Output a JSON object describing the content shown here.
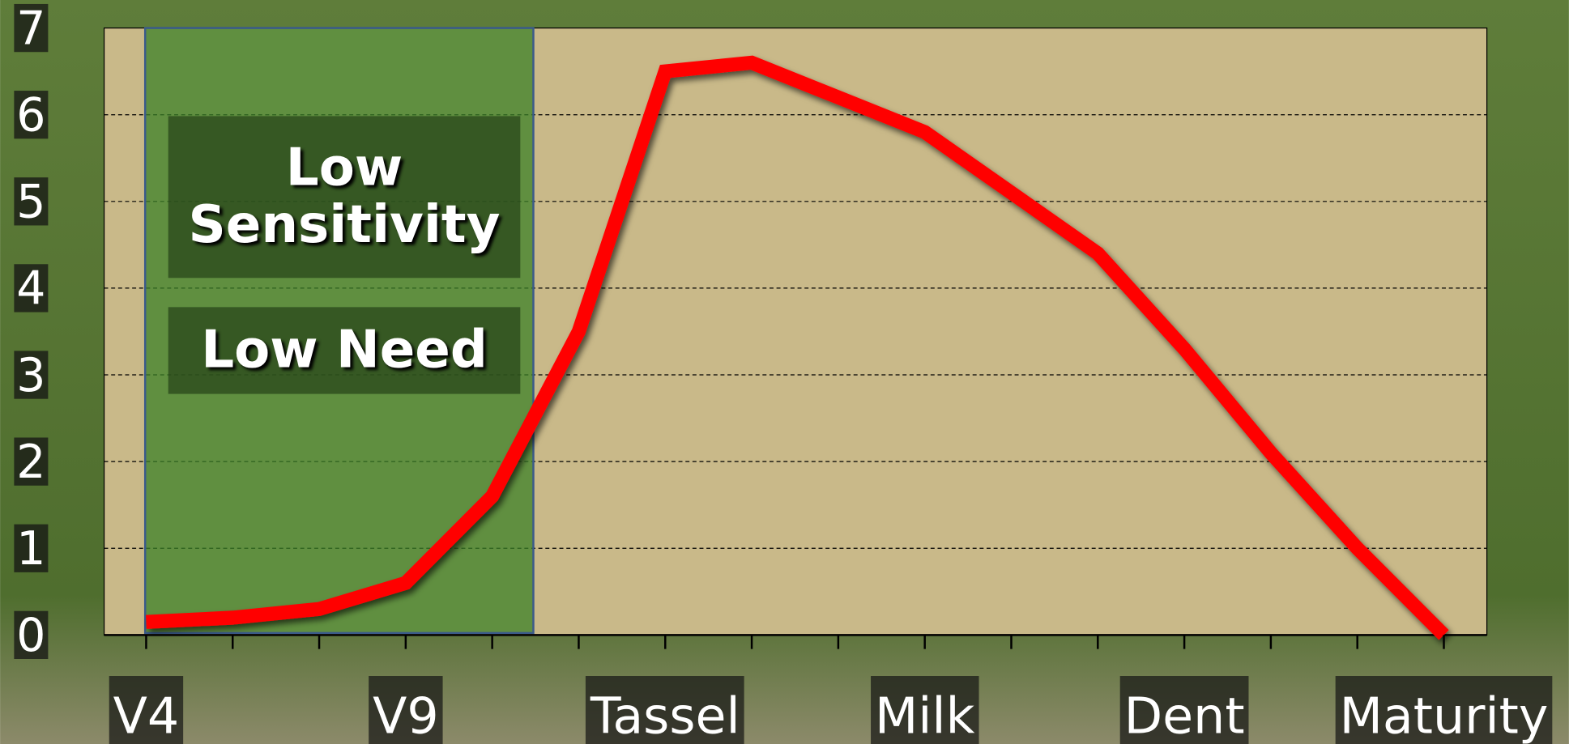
{
  "chart_data": {
    "type": "line",
    "categories": [
      "V4",
      null,
      null,
      "V9",
      null,
      null,
      "Tassel",
      null,
      null,
      "Milk",
      null,
      null,
      "Dent",
      null,
      null,
      "Maturity"
    ],
    "series": [
      {
        "color": "#ff0000",
        "values": [
          0.15,
          0.2,
          0.3,
          0.6,
          1.6,
          3.5,
          6.5,
          6.6,
          6.2,
          5.8,
          5.1,
          4.4,
          3.3,
          2.1,
          1.0,
          0
        ]
      }
    ],
    "ylim": [
      0,
      7
    ],
    "yticks": [
      0,
      1,
      2,
      3,
      4,
      5,
      6,
      7
    ],
    "grid": true,
    "annotations": [
      "Low Sensitivity",
      "Low Need"
    ]
  }
}
